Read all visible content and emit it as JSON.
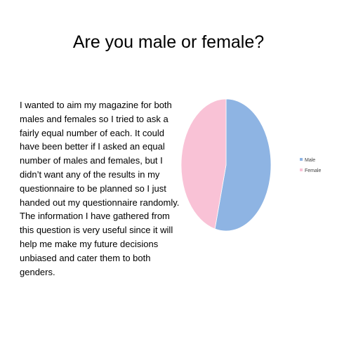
{
  "slide": {
    "title": "Are you male or female?",
    "body": "I wanted to aim my magazine for both males and females so I tried to ask a fairly equal number of each. It could have been better if I asked an equal number of males and females, but I didn’t want any of the results in my questionnaire to be planned so I just handed out my questionnaire randomly. The information I have gathered from this question is very useful since it will help me make my future decisions unbiased and cater them to both genders."
  },
  "chart_data": {
    "type": "pie",
    "title": "",
    "categories": [
      "Male",
      "Female"
    ],
    "values": [
      54,
      46
    ],
    "colors": [
      "#8eb4e3",
      "#f9c2d6"
    ],
    "start_angle_deg": 0,
    "direction": "clockwise",
    "legend": "right"
  }
}
